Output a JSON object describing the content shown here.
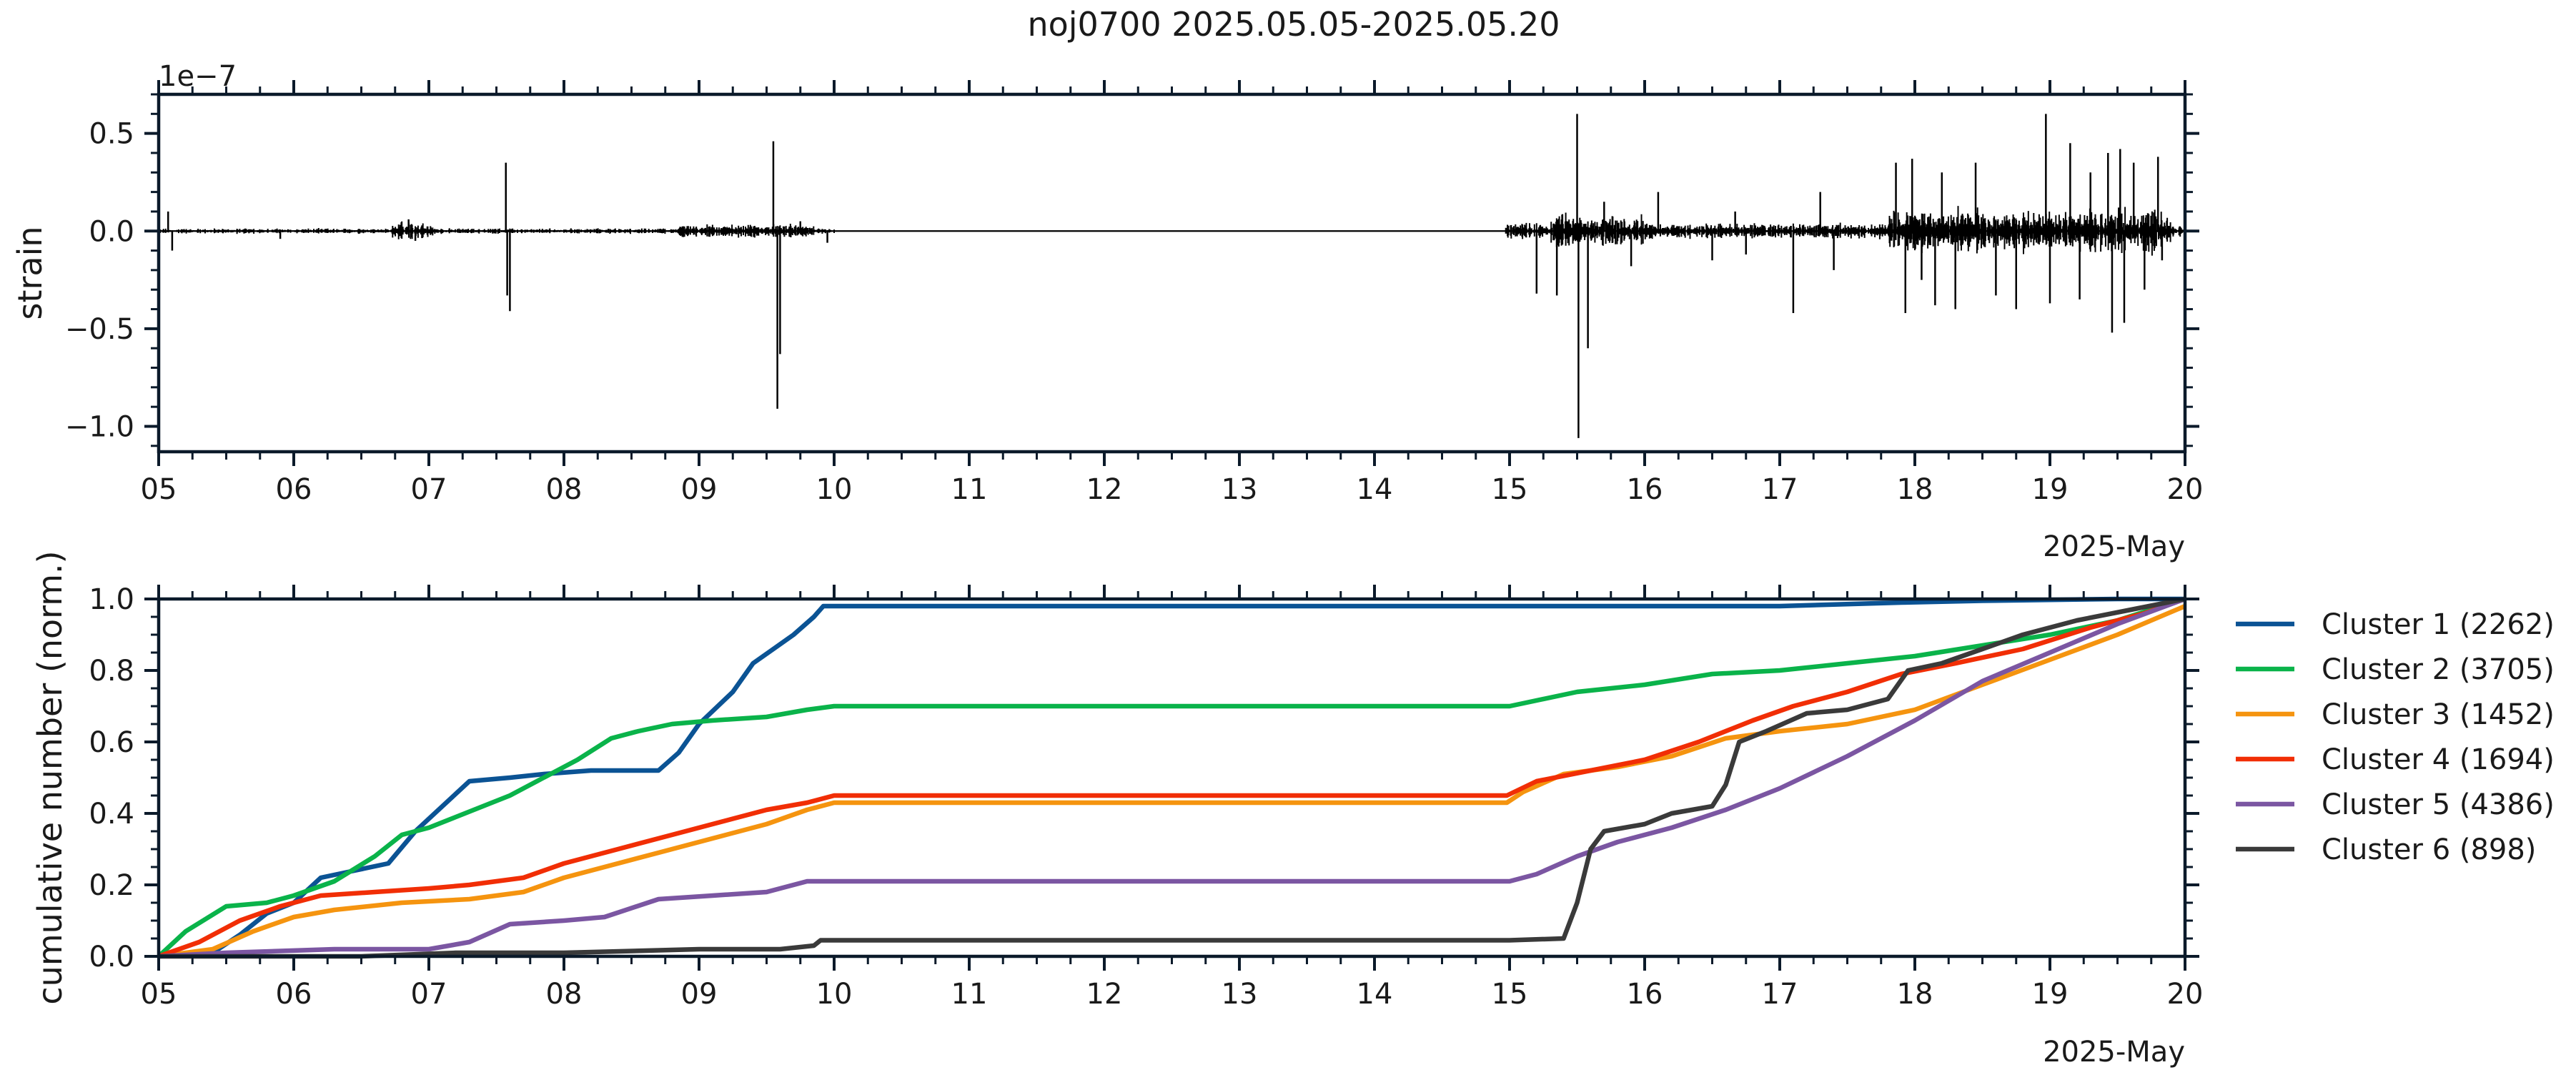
{
  "figure": {
    "title": "noj0700 2025.05.05-2025.05.20"
  },
  "chart_data": [
    {
      "type": "line",
      "panel": "strain",
      "ylabel": "strain",
      "offset_text": "1e−7",
      "xlabel": "2025-May",
      "x_tick_labels": [
        "05",
        "06",
        "07",
        "08",
        "09",
        "10",
        "11",
        "12",
        "13",
        "14",
        "15",
        "16",
        "17",
        "18",
        "19",
        "20"
      ],
      "x_range_days": [
        5,
        20
      ],
      "y_ticks": [
        -1.0,
        -0.5,
        0.0,
        0.5
      ],
      "y_tick_labels": [
        "−1.0",
        "−0.5",
        "0.0",
        "0.5"
      ],
      "y_range": [
        -1.13,
        0.7
      ],
      "y_unit_scale": "1e-7",
      "series_color": "#000000",
      "data_gap": [
        10.0,
        14.97
      ],
      "spikes": [
        {
          "day": 5.07,
          "value": 0.1
        },
        {
          "day": 5.1,
          "value": -0.1
        },
        {
          "day": 5.9,
          "value": -0.04
        },
        {
          "day": 6.85,
          "value": 0.06
        },
        {
          "day": 6.9,
          "value": -0.05
        },
        {
          "day": 7.57,
          "value": 0.35
        },
        {
          "day": 7.6,
          "value": -0.41
        },
        {
          "day": 7.58,
          "value": -0.33
        },
        {
          "day": 9.55,
          "value": 0.46
        },
        {
          "day": 9.58,
          "value": -0.91
        },
        {
          "day": 9.6,
          "value": -0.63
        },
        {
          "day": 9.75,
          "value": 0.05
        },
        {
          "day": 9.95,
          "value": -0.06
        },
        {
          "day": 15.2,
          "value": -0.32
        },
        {
          "day": 15.35,
          "value": -0.33
        },
        {
          "day": 15.5,
          "value": 0.6
        },
        {
          "day": 15.51,
          "value": -1.06
        },
        {
          "day": 15.58,
          "value": -0.6
        },
        {
          "day": 15.7,
          "value": 0.15
        },
        {
          "day": 15.9,
          "value": -0.18
        },
        {
          "day": 16.1,
          "value": 0.2
        },
        {
          "day": 16.5,
          "value": -0.15
        },
        {
          "day": 16.67,
          "value": 0.1
        },
        {
          "day": 16.75,
          "value": -0.12
        },
        {
          "day": 17.1,
          "value": -0.42
        },
        {
          "day": 17.3,
          "value": 0.2
        },
        {
          "day": 17.4,
          "value": -0.2
        },
        {
          "day": 17.86,
          "value": 0.35
        },
        {
          "day": 17.93,
          "value": -0.42
        },
        {
          "day": 17.98,
          "value": 0.37
        },
        {
          "day": 18.05,
          "value": -0.25
        },
        {
          "day": 18.15,
          "value": -0.38
        },
        {
          "day": 18.2,
          "value": 0.3
        },
        {
          "day": 18.3,
          "value": -0.4
        },
        {
          "day": 18.45,
          "value": 0.35
        },
        {
          "day": 18.6,
          "value": -0.33
        },
        {
          "day": 18.75,
          "value": -0.4
        },
        {
          "day": 18.97,
          "value": 0.6
        },
        {
          "day": 19.0,
          "value": -0.37
        },
        {
          "day": 19.15,
          "value": 0.45
        },
        {
          "day": 19.22,
          "value": -0.35
        },
        {
          "day": 19.3,
          "value": 0.3
        },
        {
          "day": 19.43,
          "value": 0.4
        },
        {
          "day": 19.46,
          "value": -0.52
        },
        {
          "day": 19.52,
          "value": 0.42
        },
        {
          "day": 19.55,
          "value": -0.47
        },
        {
          "day": 19.62,
          "value": 0.35
        },
        {
          "day": 19.7,
          "value": -0.3
        },
        {
          "day": 19.8,
          "value": 0.38
        },
        {
          "day": 19.83,
          "value": -0.15
        }
      ]
    },
    {
      "type": "line",
      "panel": "cumulative",
      "ylabel": "cumulative number (norm.)",
      "xlabel": "2025-May",
      "x_tick_labels": [
        "05",
        "06",
        "07",
        "08",
        "09",
        "10",
        "11",
        "12",
        "13",
        "14",
        "15",
        "16",
        "17",
        "18",
        "19",
        "20"
      ],
      "x_range_days": [
        5,
        20
      ],
      "y_ticks": [
        0.0,
        0.2,
        0.4,
        0.6,
        0.8,
        1.0
      ],
      "y_tick_labels": [
        "0.0",
        "0.2",
        "0.4",
        "0.6",
        "0.8",
        "1.0"
      ],
      "y_range": [
        0,
        1
      ],
      "legend_position": "outside-right",
      "series": [
        {
          "name": "Cluster 1 (2262)",
          "color": "#0b5394",
          "points": [
            [
              5.0,
              0.0
            ],
            [
              5.4,
              0.01
            ],
            [
              5.6,
              0.06
            ],
            [
              5.8,
              0.12
            ],
            [
              6.0,
              0.15
            ],
            [
              6.2,
              0.22
            ],
            [
              6.45,
              0.24
            ],
            [
              6.7,
              0.26
            ],
            [
              6.9,
              0.35
            ],
            [
              7.1,
              0.42
            ],
            [
              7.3,
              0.49
            ],
            [
              7.6,
              0.5
            ],
            [
              7.85,
              0.51
            ],
            [
              8.2,
              0.52
            ],
            [
              8.7,
              0.52
            ],
            [
              8.85,
              0.57
            ],
            [
              9.0,
              0.65
            ],
            [
              9.25,
              0.74
            ],
            [
              9.4,
              0.82
            ],
            [
              9.55,
              0.86
            ],
            [
              9.7,
              0.9
            ],
            [
              9.85,
              0.95
            ],
            [
              9.92,
              0.98
            ],
            [
              12.0,
              0.98
            ],
            [
              15.0,
              0.98
            ],
            [
              17.0,
              0.98
            ],
            [
              17.9,
              0.99
            ],
            [
              18.5,
              0.995
            ],
            [
              19.5,
              1.0
            ],
            [
              20.0,
              1.0
            ]
          ]
        },
        {
          "name": "Cluster 2 (3705)",
          "color": "#0ab34a",
          "points": [
            [
              5.0,
              0.0
            ],
            [
              5.2,
              0.07
            ],
            [
              5.5,
              0.14
            ],
            [
              5.8,
              0.15
            ],
            [
              6.0,
              0.17
            ],
            [
              6.3,
              0.21
            ],
            [
              6.6,
              0.28
            ],
            [
              6.8,
              0.34
            ],
            [
              7.0,
              0.36
            ],
            [
              7.2,
              0.39
            ],
            [
              7.4,
              0.42
            ],
            [
              7.6,
              0.45
            ],
            [
              7.8,
              0.49
            ],
            [
              8.1,
              0.55
            ],
            [
              8.35,
              0.61
            ],
            [
              8.55,
              0.63
            ],
            [
              8.8,
              0.65
            ],
            [
              9.1,
              0.66
            ],
            [
              9.5,
              0.67
            ],
            [
              9.8,
              0.69
            ],
            [
              10.0,
              0.7
            ],
            [
              12.0,
              0.7
            ],
            [
              15.0,
              0.7
            ],
            [
              15.5,
              0.74
            ],
            [
              16.0,
              0.76
            ],
            [
              16.5,
              0.79
            ],
            [
              17.0,
              0.8
            ],
            [
              17.5,
              0.82
            ],
            [
              18.0,
              0.84
            ],
            [
              18.5,
              0.87
            ],
            [
              19.0,
              0.9
            ],
            [
              19.5,
              0.94
            ],
            [
              20.0,
              1.0
            ]
          ]
        },
        {
          "name": "Cluster 3 (1452)",
          "color": "#f5940f",
          "points": [
            [
              5.0,
              0.0
            ],
            [
              5.4,
              0.02
            ],
            [
              5.7,
              0.07
            ],
            [
              6.0,
              0.11
            ],
            [
              6.3,
              0.13
            ],
            [
              6.8,
              0.15
            ],
            [
              7.3,
              0.16
            ],
            [
              7.7,
              0.18
            ],
            [
              8.0,
              0.22
            ],
            [
              8.3,
              0.25
            ],
            [
              8.7,
              0.29
            ],
            [
              9.1,
              0.33
            ],
            [
              9.5,
              0.37
            ],
            [
              9.8,
              0.41
            ],
            [
              10.0,
              0.43
            ],
            [
              12.0,
              0.43
            ],
            [
              14.98,
              0.43
            ],
            [
              15.1,
              0.46
            ],
            [
              15.4,
              0.51
            ],
            [
              15.8,
              0.53
            ],
            [
              16.2,
              0.56
            ],
            [
              16.6,
              0.61
            ],
            [
              17.0,
              0.63
            ],
            [
              17.5,
              0.65
            ],
            [
              18.0,
              0.69
            ],
            [
              18.5,
              0.76
            ],
            [
              19.0,
              0.83
            ],
            [
              19.5,
              0.9
            ],
            [
              20.0,
              0.98
            ]
          ]
        },
        {
          "name": "Cluster 4 (1694)",
          "color": "#f12e05",
          "points": [
            [
              5.0,
              0.0
            ],
            [
              5.3,
              0.04
            ],
            [
              5.6,
              0.1
            ],
            [
              5.9,
              0.14
            ],
            [
              6.2,
              0.17
            ],
            [
              6.6,
              0.18
            ],
            [
              7.0,
              0.19
            ],
            [
              7.3,
              0.2
            ],
            [
              7.7,
              0.22
            ],
            [
              8.0,
              0.26
            ],
            [
              8.4,
              0.3
            ],
            [
              8.8,
              0.34
            ],
            [
              9.2,
              0.38
            ],
            [
              9.5,
              0.41
            ],
            [
              9.8,
              0.43
            ],
            [
              10.0,
              0.45
            ],
            [
              12.0,
              0.45
            ],
            [
              14.98,
              0.45
            ],
            [
              15.2,
              0.49
            ],
            [
              15.6,
              0.52
            ],
            [
              16.0,
              0.55
            ],
            [
              16.4,
              0.6
            ],
            [
              16.8,
              0.66
            ],
            [
              17.1,
              0.7
            ],
            [
              17.5,
              0.74
            ],
            [
              17.9,
              0.79
            ],
            [
              18.3,
              0.82
            ],
            [
              18.8,
              0.86
            ],
            [
              19.3,
              0.92
            ],
            [
              19.7,
              0.96
            ],
            [
              20.0,
              1.0
            ]
          ]
        },
        {
          "name": "Cluster 5 (4386)",
          "color": "#7b56a2",
          "points": [
            [
              5.0,
              0.0
            ],
            [
              5.5,
              0.01
            ],
            [
              6.3,
              0.02
            ],
            [
              7.0,
              0.02
            ],
            [
              7.3,
              0.04
            ],
            [
              7.6,
              0.09
            ],
            [
              8.0,
              0.1
            ],
            [
              8.3,
              0.11
            ],
            [
              8.7,
              0.16
            ],
            [
              9.1,
              0.17
            ],
            [
              9.5,
              0.18
            ],
            [
              9.8,
              0.21
            ],
            [
              10.0,
              0.21
            ],
            [
              12.0,
              0.21
            ],
            [
              15.0,
              0.21
            ],
            [
              15.2,
              0.23
            ],
            [
              15.5,
              0.28
            ],
            [
              15.8,
              0.32
            ],
            [
              16.2,
              0.36
            ],
            [
              16.6,
              0.41
            ],
            [
              17.0,
              0.47
            ],
            [
              17.5,
              0.56
            ],
            [
              18.0,
              0.66
            ],
            [
              18.5,
              0.77
            ],
            [
              19.0,
              0.85
            ],
            [
              19.5,
              0.93
            ],
            [
              20.0,
              1.0
            ]
          ]
        },
        {
          "name": "Cluster 6 (898)",
          "color": "#3a3a3a",
          "points": [
            [
              5.0,
              0.0
            ],
            [
              6.5,
              0.0
            ],
            [
              7.2,
              0.01
            ],
            [
              8.0,
              0.01
            ],
            [
              9.0,
              0.02
            ],
            [
              9.6,
              0.02
            ],
            [
              9.85,
              0.03
            ],
            [
              9.9,
              0.045
            ],
            [
              10.0,
              0.045
            ],
            [
              12.0,
              0.045
            ],
            [
              15.0,
              0.045
            ],
            [
              15.4,
              0.05
            ],
            [
              15.5,
              0.15
            ],
            [
              15.6,
              0.3
            ],
            [
              15.7,
              0.35
            ],
            [
              16.0,
              0.37
            ],
            [
              16.2,
              0.4
            ],
            [
              16.5,
              0.42
            ],
            [
              16.6,
              0.48
            ],
            [
              16.7,
              0.6
            ],
            [
              16.9,
              0.63
            ],
            [
              17.2,
              0.68
            ],
            [
              17.5,
              0.69
            ],
            [
              17.8,
              0.72
            ],
            [
              17.95,
              0.8
            ],
            [
              18.2,
              0.82
            ],
            [
              18.5,
              0.86
            ],
            [
              18.8,
              0.9
            ],
            [
              19.2,
              0.94
            ],
            [
              19.6,
              0.97
            ],
            [
              20.0,
              1.0
            ]
          ]
        }
      ]
    }
  ]
}
